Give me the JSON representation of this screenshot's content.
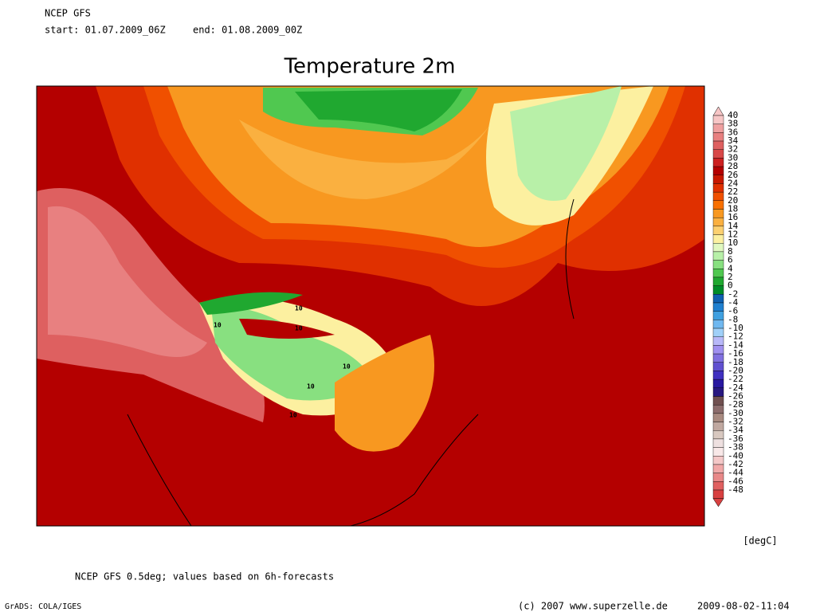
{
  "header": {
    "model": "NCEP GFS",
    "start": "start: 01.07.2009_06Z",
    "end": "end: 01.08.2009_00Z"
  },
  "title": "Temperature 2m",
  "colorbar": {
    "levels": [
      40,
      38,
      36,
      34,
      32,
      30,
      28,
      26,
      24,
      22,
      20,
      18,
      16,
      14,
      12,
      10,
      8,
      6,
      4,
      2,
      0,
      -2,
      -4,
      -6,
      -8,
      -10,
      -12,
      -14,
      -16,
      -18,
      -20,
      -22,
      -24,
      -26,
      -28,
      -30,
      -32,
      -34,
      -36,
      -38,
      -40,
      -42,
      -44,
      -46,
      -48
    ],
    "colors": [
      "#f7c6c6",
      "#efa0a0",
      "#e88080",
      "#de6060",
      "#d84848",
      "#cc2020",
      "#b40000",
      "#c81800",
      "#e03000",
      "#f05000",
      "#f87000",
      "#f89820",
      "#fab040",
      "#fcd070",
      "#fcf0a0",
      "#e0f8c0",
      "#b8f0a8",
      "#88e080",
      "#50c850",
      "#20a830",
      "#008c28",
      "#1060b0",
      "#2080d0",
      "#40a0e0",
      "#70b8f0",
      "#a0d0f8",
      "#b8b8f8",
      "#a090f0",
      "#8070e0",
      "#6050d0",
      "#4030c0",
      "#2818a0",
      "#281880",
      "#705050",
      "#8c6c6c",
      "#a88a80",
      "#c0a8a0",
      "#d8c8c0",
      "#eee0e0",
      "#f8e8e8",
      "#f4c8c8",
      "#f0a8a8",
      "#e88888",
      "#e06060",
      "#d84040"
    ],
    "unit": "[degC]"
  },
  "contour_labels": [
    10,
    10,
    10,
    10,
    10,
    10
  ],
  "footer": {
    "note": "NCEP GFS 0.5deg; values based on 6h-forecasts",
    "software": "GrADS: COLA/IGES",
    "copyright": "(c) 2007 www.superzelle.de",
    "timestamp": "2009-08-02-11:04"
  }
}
